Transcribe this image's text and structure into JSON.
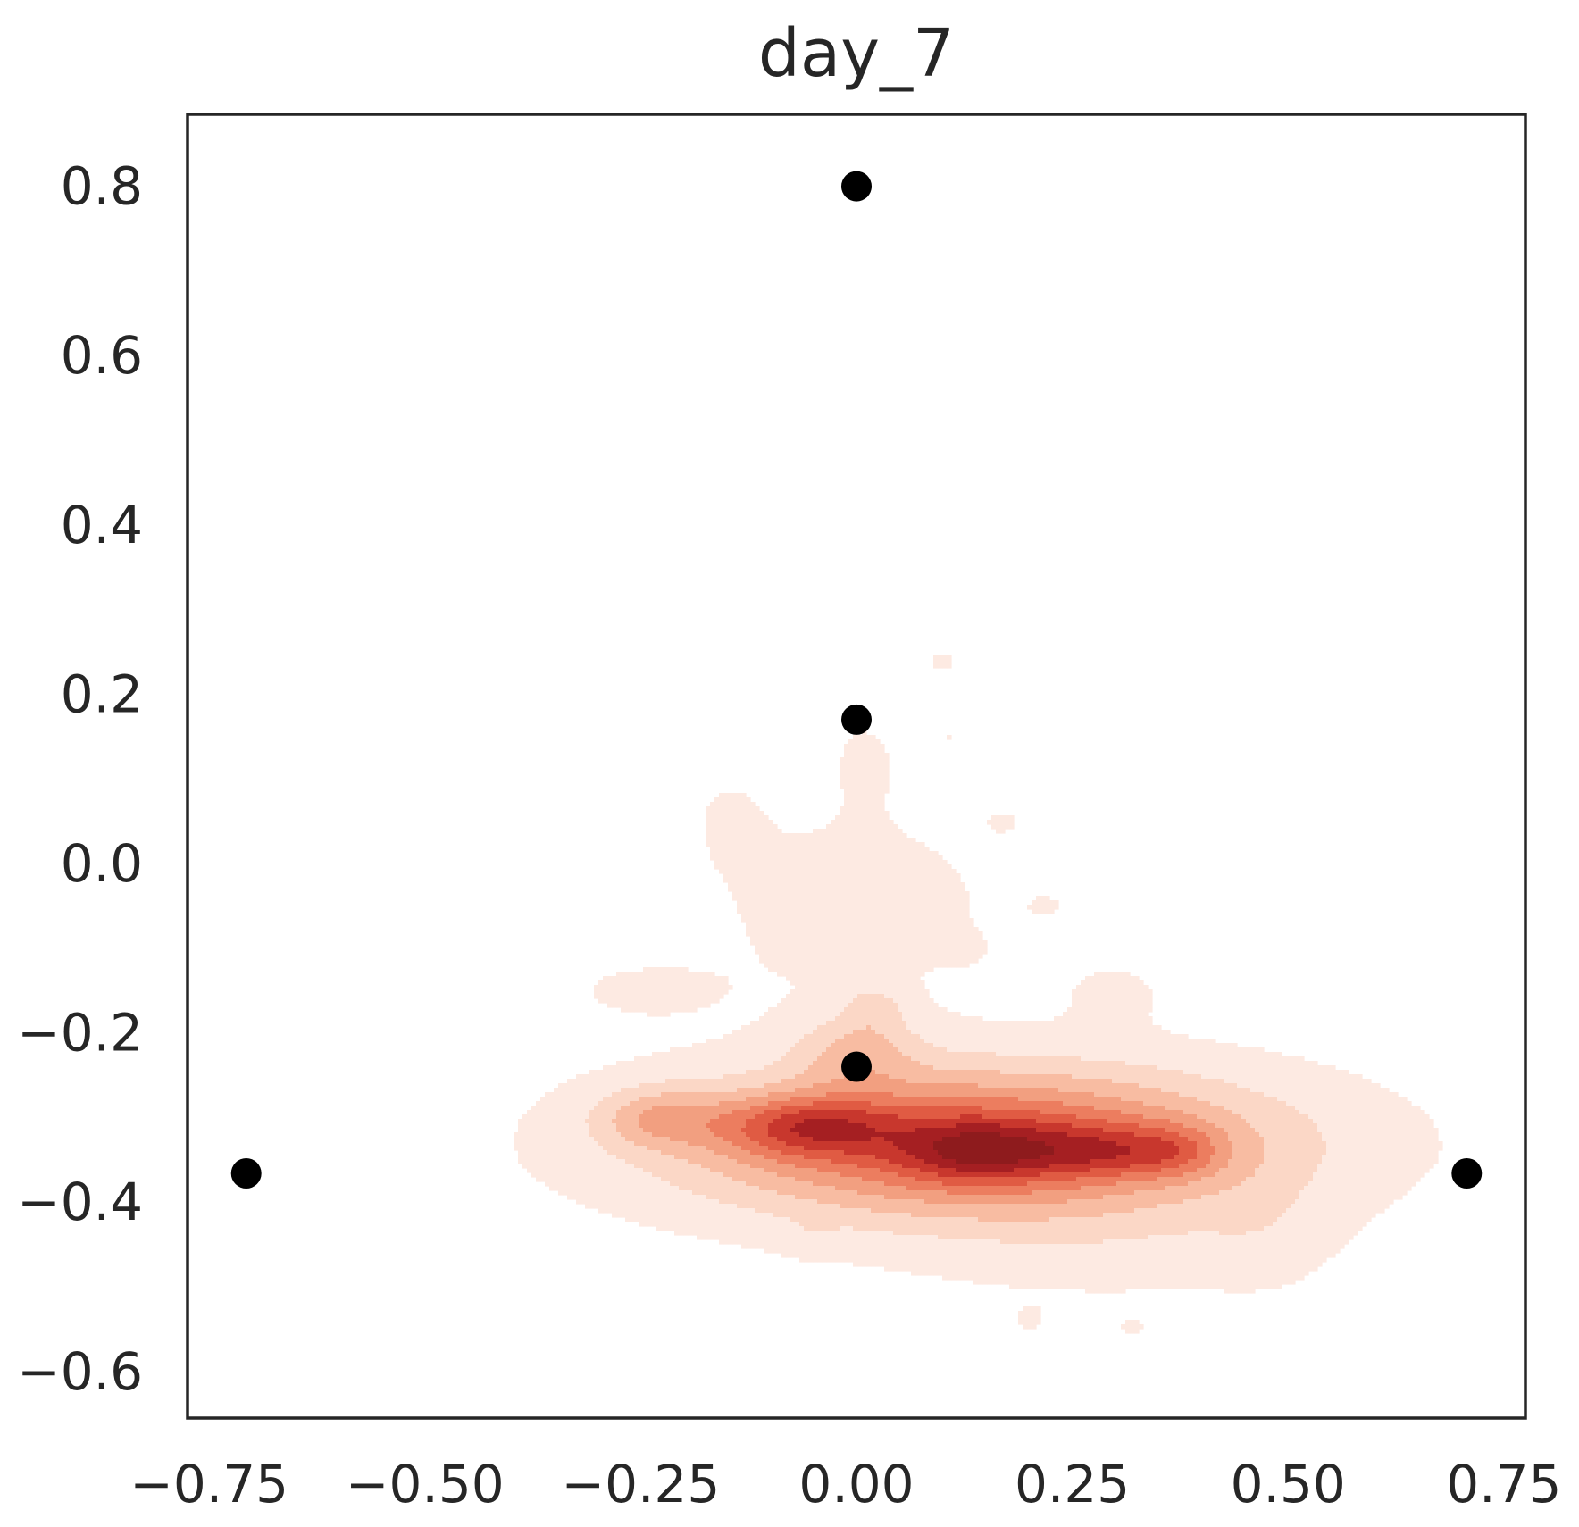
{
  "chart_data": {
    "type": "scatter",
    "title": "day_7",
    "xlabel": "",
    "ylabel": "",
    "xlim": [
      -0.775,
      0.775
    ],
    "ylim": [
      -0.655,
      0.885
    ],
    "xticks": [
      -0.75,
      -0.5,
      -0.25,
      0.0,
      0.25,
      0.5,
      0.75
    ],
    "xtick_labels": [
      "−0.75",
      "−0.50",
      "−0.25",
      "0.00",
      "0.25",
      "0.50",
      "0.75"
    ],
    "yticks": [
      -0.6,
      -0.4,
      -0.2,
      0.0,
      0.2,
      0.4,
      0.6,
      0.8
    ],
    "ytick_labels": [
      "−0.6",
      "−0.4",
      "−0.2",
      "0.0",
      "0.2",
      "0.4",
      "0.6",
      "0.8"
    ],
    "grid": false,
    "legend": "none",
    "points": [
      {
        "x": 0.0,
        "y": 0.8
      },
      {
        "x": 0.0,
        "y": 0.17
      },
      {
        "x": 0.0,
        "y": -0.24
      },
      {
        "x": -0.707,
        "y": -0.366
      },
      {
        "x": 0.707,
        "y": -0.366
      }
    ],
    "point_color": "#000000",
    "density": {
      "type": "kde",
      "colormap": "Reds",
      "levels": [
        "#fdeae2",
        "#fbd7c6",
        "#f8bca2",
        "#f29f80",
        "#ec7d5f",
        "#e05b43",
        "#c8372d",
        "#a51f22",
        "#8e1b1d"
      ],
      "blobs": [
        {
          "x": 0.14,
          "y": -0.33,
          "sx": 0.23,
          "sy": 0.06,
          "w": 1.0
        },
        {
          "x": -0.06,
          "y": -0.31,
          "sx": 0.07,
          "sy": 0.025,
          "w": 0.55
        },
        {
          "x": 0.14,
          "y": -0.34,
          "sx": 0.06,
          "sy": 0.025,
          "w": 0.45
        },
        {
          "x": 0.28,
          "y": -0.34,
          "sx": 0.06,
          "sy": 0.022,
          "w": 0.35
        },
        {
          "x": 0.37,
          "y": -0.34,
          "sx": 0.04,
          "sy": 0.022,
          "w": 0.3
        },
        {
          "x": -0.23,
          "y": -0.3,
          "sx": 0.05,
          "sy": 0.025,
          "w": 0.35
        },
        {
          "x": 0.0,
          "y": -0.22,
          "sx": 0.05,
          "sy": 0.03,
          "w": 0.3
        },
        {
          "x": 0.02,
          "y": -0.17,
          "sx": 0.025,
          "sy": 0.02,
          "w": 0.2
        },
        {
          "x": 0.0,
          "y": -0.05,
          "sx": 0.12,
          "sy": 0.08,
          "w": 0.12
        },
        {
          "x": 0.01,
          "y": 0.13,
          "sx": 0.04,
          "sy": 0.05,
          "w": 0.07
        },
        {
          "x": -0.15,
          "y": 0.06,
          "sx": 0.04,
          "sy": 0.05,
          "w": 0.06
        },
        {
          "x": 0.3,
          "y": -0.45,
          "sx": 0.17,
          "sy": 0.05,
          "w": 0.1
        },
        {
          "x": 0.47,
          "y": -0.43,
          "sx": 0.05,
          "sy": 0.05,
          "w": 0.08
        },
        {
          "x": -0.25,
          "y": -0.15,
          "sx": 0.08,
          "sy": 0.03,
          "w": 0.08
        },
        {
          "x": 0.3,
          "y": -0.15,
          "sx": 0.05,
          "sy": 0.03,
          "w": 0.08
        },
        {
          "x": 0.1,
          "y": 0.24,
          "sx": 0.03,
          "sy": 0.025,
          "w": 0.07
        },
        {
          "x": 0.09,
          "y": 0.41,
          "sx": 0.022,
          "sy": 0.014,
          "w": 0.06
        },
        {
          "x": 0.04,
          "y": 0.6,
          "sx": 0.022,
          "sy": 0.013,
          "w": 0.06
        },
        {
          "x": 0.11,
          "y": 0.15,
          "sx": 0.022,
          "sy": 0.014,
          "w": 0.06
        },
        {
          "x": 0.17,
          "y": 0.05,
          "sx": 0.02,
          "sy": 0.014,
          "w": 0.06
        },
        {
          "x": 0.3,
          "y": 0.01,
          "sx": 0.02,
          "sy": 0.014,
          "w": 0.06
        },
        {
          "x": 0.39,
          "y": 0.03,
          "sx": 0.02,
          "sy": 0.014,
          "w": 0.06
        },
        {
          "x": 0.22,
          "y": -0.05,
          "sx": 0.02,
          "sy": 0.014,
          "w": 0.06
        },
        {
          "x": 0.12,
          "y": -0.1,
          "sx": 0.02,
          "sy": 0.014,
          "w": 0.06
        },
        {
          "x": 0.57,
          "y": -0.15,
          "sx": 0.02,
          "sy": 0.014,
          "w": 0.06
        },
        {
          "x": -0.05,
          "y": -0.44,
          "sx": 0.02,
          "sy": 0.016,
          "w": 0.06
        },
        {
          "x": 0.2,
          "y": -0.54,
          "sx": 0.02,
          "sy": 0.016,
          "w": 0.06
        },
        {
          "x": 0.32,
          "y": -0.55,
          "sx": 0.02,
          "sy": 0.014,
          "w": 0.06
        },
        {
          "x": 0.46,
          "y": -0.61,
          "sx": 0.02,
          "sy": 0.014,
          "w": 0.06
        }
      ]
    }
  }
}
